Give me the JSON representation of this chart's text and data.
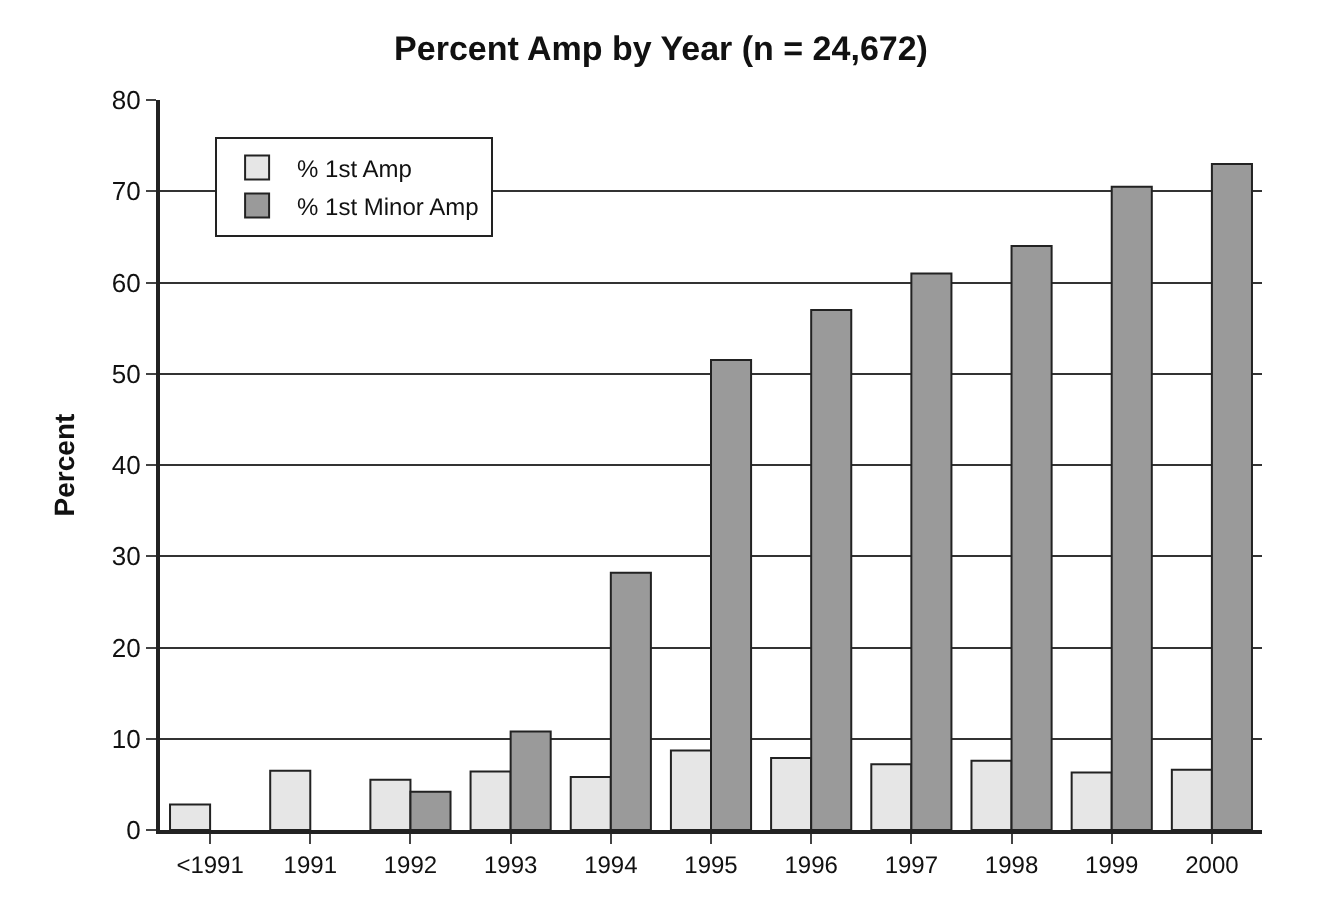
{
  "chart_data": {
    "type": "bar",
    "title": "Percent Amp by Year (n = 24,672)",
    "ylabel": "Percent",
    "categories": [
      "<1991",
      "1991",
      "1992",
      "1993",
      "1994",
      "1995",
      "1996",
      "1997",
      "1998",
      "1999",
      "2000"
    ],
    "series": [
      {
        "name": "% 1st Amp",
        "color": "#e6e6e6",
        "values": [
          2.8,
          6.5,
          5.5,
          6.4,
          5.8,
          8.7,
          7.9,
          7.2,
          7.6,
          6.3,
          6.6
        ]
      },
      {
        "name": "% 1st Minor Amp",
        "color": "#9a9a9a",
        "values": [
          null,
          null,
          4.2,
          10.8,
          28.2,
          51.5,
          57,
          61,
          64,
          70.5,
          73
        ]
      }
    ],
    "ylim": [
      0,
      80
    ],
    "yticks": [
      0,
      10,
      20,
      30,
      40,
      50,
      60,
      70,
      80
    ],
    "grid": "y",
    "legend": "top left"
  }
}
